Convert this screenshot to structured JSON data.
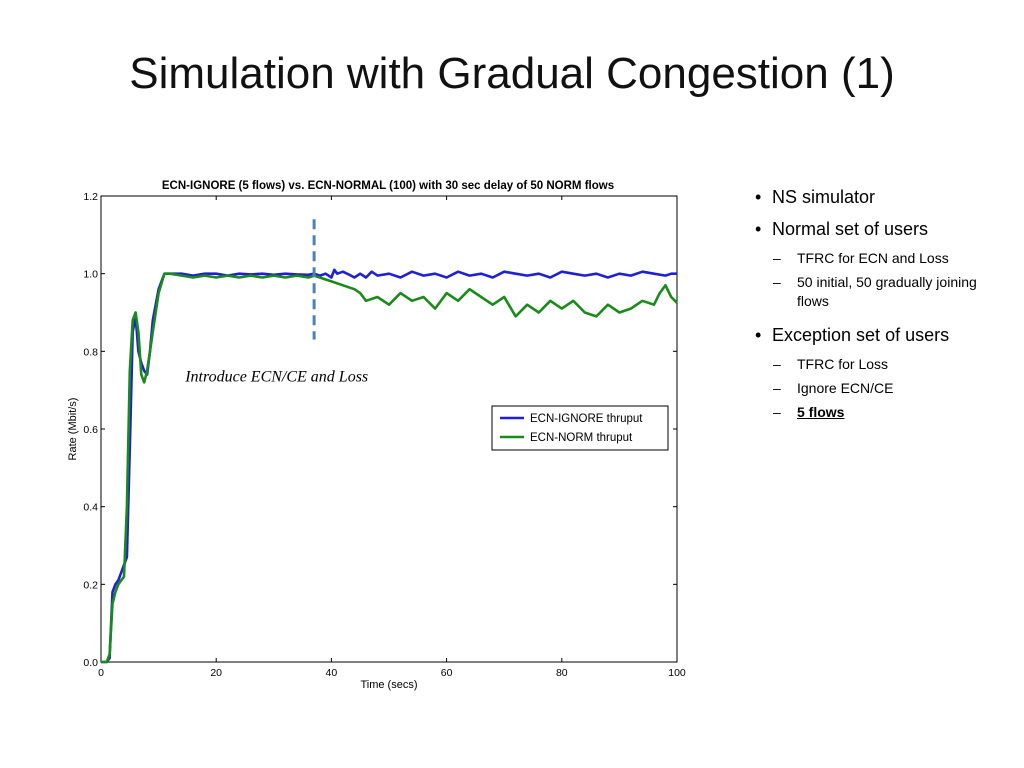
{
  "slide": {
    "title": "Simulation with Gradual Congestion (1)"
  },
  "bullets": [
    {
      "text": "NS simulator",
      "sub": []
    },
    {
      "text": "Normal set of users",
      "sub": [
        {
          "text": "TFRC  for ECN and Loss",
          "bold": false
        },
        {
          "text": "50 initial, 50 gradually joining flows",
          "bold": false
        }
      ]
    },
    {
      "text": "Exception set of users",
      "sub": [
        {
          "text": "TFRC for Loss",
          "bold": false
        },
        {
          "text": "Ignore ECN/CE",
          "bold": false
        },
        {
          "text": "5 flows",
          "bold": true
        }
      ]
    }
  ],
  "chart_data": {
    "type": "line",
    "title": "ECN-IGNORE (5 flows) vs. ECN-NORMAL (100) with 30 sec delay of 50 NORM flows",
    "xlabel": "Time (secs)",
    "ylabel": "Rate (Mbit/s)",
    "xlim": [
      0,
      100
    ],
    "ylim": [
      0,
      1.2
    ],
    "xticks": [
      0,
      20,
      40,
      60,
      80,
      100
    ],
    "yticks": [
      0.0,
      0.2,
      0.4,
      0.6,
      0.8,
      1.0,
      1.2
    ],
    "xtick_labels": [
      "0",
      "20",
      "40",
      "60",
      "80",
      "100"
    ],
    "ytick_labels": [
      "0.0",
      "0.2",
      "0.4",
      "0.6",
      "0.8",
      "1.0",
      "1.2"
    ],
    "grid": false,
    "legend_position": "center-right",
    "annotation": {
      "text": "Introduce ECN/CE and Loss",
      "x": 20,
      "y": 0.74
    },
    "event_line": {
      "x": 37,
      "y_range": [
        0.83,
        1.14
      ],
      "color": "#4f81bd"
    },
    "series": [
      {
        "name": "ECN-IGNORE thruput",
        "color": "#1f1fd6",
        "x": [
          0,
          1,
          1.5,
          2,
          2.5,
          3,
          4,
          4.5,
          5,
          5.5,
          6,
          6.5,
          7,
          7.5,
          8,
          8.5,
          9,
          10,
          11,
          12,
          14,
          16,
          18,
          20,
          22,
          24,
          26,
          28,
          30,
          32,
          34,
          36,
          37,
          38,
          39,
          40,
          40.5,
          41,
          42,
          43,
          44,
          45,
          46,
          47,
          48,
          50,
          52,
          54,
          56,
          58,
          60,
          62,
          64,
          66,
          68,
          70,
          72,
          74,
          76,
          78,
          80,
          82,
          84,
          86,
          88,
          90,
          92,
          94,
          96,
          98,
          99,
          100
        ],
        "y": [
          0.0,
          0.0,
          0.01,
          0.18,
          0.2,
          0.21,
          0.25,
          0.27,
          0.55,
          0.85,
          0.89,
          0.8,
          0.77,
          0.75,
          0.74,
          0.8,
          0.88,
          0.96,
          1.0,
          1.0,
          1.0,
          0.995,
          1.0,
          1.0,
          0.995,
          1.0,
          0.998,
          1.0,
          0.997,
          1.0,
          0.998,
          0.997,
          1.0,
          0.995,
          1.0,
          0.99,
          1.01,
          1.0,
          1.005,
          0.998,
          0.99,
          1.0,
          0.99,
          1.005,
          0.995,
          1.0,
          0.99,
          1.005,
          0.995,
          1.0,
          0.99,
          1.005,
          0.995,
          1.0,
          0.99,
          1.005,
          1.0,
          0.995,
          1.0,
          0.99,
          1.005,
          1.0,
          0.995,
          1.0,
          0.99,
          1.0,
          0.995,
          1.005,
          1.0,
          0.995,
          1.0,
          1.0
        ]
      },
      {
        "name": "ECN-NORM thruput",
        "color": "#1a8a1a",
        "x": [
          0,
          1,
          1.5,
          2,
          2.5,
          3,
          4,
          4.5,
          5,
          5.5,
          6,
          6.5,
          7,
          7.5,
          8,
          8.5,
          9,
          10,
          11,
          12,
          14,
          16,
          18,
          20,
          22,
          24,
          26,
          28,
          30,
          32,
          34,
          36,
          37,
          38,
          39,
          40,
          42,
          44,
          45,
          46,
          48,
          50,
          52,
          54,
          56,
          58,
          60,
          62,
          64,
          66,
          68,
          70,
          72,
          74,
          76,
          78,
          80,
          82,
          84,
          86,
          88,
          90,
          92,
          94,
          96,
          97,
          98,
          99,
          100
        ],
        "y": [
          0.0,
          0.0,
          0.02,
          0.15,
          0.18,
          0.2,
          0.22,
          0.4,
          0.75,
          0.88,
          0.9,
          0.85,
          0.74,
          0.72,
          0.75,
          0.8,
          0.85,
          0.95,
          1.0,
          1.0,
          0.995,
          0.99,
          0.995,
          0.99,
          0.995,
          0.99,
          0.995,
          0.99,
          0.995,
          0.99,
          0.995,
          0.99,
          0.995,
          0.99,
          0.985,
          0.98,
          0.97,
          0.96,
          0.95,
          0.93,
          0.94,
          0.92,
          0.95,
          0.93,
          0.94,
          0.91,
          0.95,
          0.93,
          0.96,
          0.94,
          0.92,
          0.94,
          0.89,
          0.92,
          0.9,
          0.93,
          0.91,
          0.93,
          0.9,
          0.89,
          0.92,
          0.9,
          0.91,
          0.93,
          0.92,
          0.95,
          0.97,
          0.94,
          0.925
        ]
      }
    ]
  }
}
